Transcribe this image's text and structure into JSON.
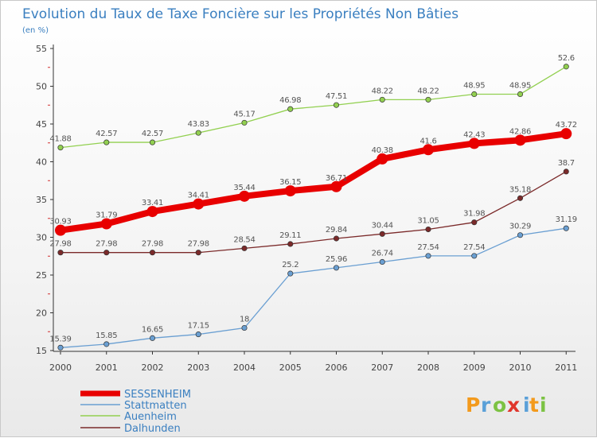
{
  "chart_data": {
    "type": "line",
    "title": "Evolution du Taux de Taxe Foncière sur les Propriétés Non Bâties",
    "unit_label": "(en %)",
    "xlabel": "",
    "ylabel": "",
    "ylim": [
      15,
      55
    ],
    "y_ticks": [
      15,
      20,
      25,
      30,
      35,
      40,
      45,
      50,
      55
    ],
    "categories": [
      "2000",
      "2001",
      "2002",
      "2003",
      "2004",
      "2005",
      "2006",
      "2007",
      "2008",
      "2009",
      "2010",
      "2011"
    ],
    "series": [
      {
        "name": "SESSENHEIM",
        "color": "#e80000",
        "highlight": true,
        "values": [
          30.93,
          31.79,
          33.41,
          34.41,
          35.44,
          36.15,
          36.71,
          40.38,
          41.6,
          42.43,
          42.86,
          43.72
        ],
        "labels": [
          "30.93",
          "31.79",
          "33.41",
          "34.41",
          "35.44",
          "36.15",
          "36.71",
          "40.38",
          "41.6",
          "42.43",
          "42.86",
          "43.72"
        ]
      },
      {
        "name": "Stattmatten",
        "color": "#6a9fd2",
        "highlight": false,
        "values": [
          15.39,
          15.85,
          16.65,
          17.15,
          18,
          25.2,
          25.96,
          26.74,
          27.54,
          27.54,
          30.29,
          31.19
        ],
        "labels": [
          "15.39",
          "15.85",
          "16.65",
          "17.15",
          "18",
          "25.2",
          "25.96",
          "26.74",
          "27.54",
          "27.54",
          "30.29",
          "31.19"
        ]
      },
      {
        "name": "Auenheim",
        "color": "#92d050",
        "highlight": false,
        "values": [
          41.88,
          42.57,
          42.57,
          43.83,
          45.17,
          46.98,
          47.51,
          48.22,
          48.22,
          48.95,
          48.95,
          52.6
        ],
        "labels": [
          "41.88",
          "42.57",
          "42.57",
          "43.83",
          "45.17",
          "46.98",
          "47.51",
          "48.22",
          "48.22",
          "48.95",
          "48.95",
          "52.6"
        ]
      },
      {
        "name": "Dalhunden",
        "color": "#7b2a2a",
        "highlight": false,
        "values": [
          27.98,
          27.98,
          27.98,
          27.98,
          28.54,
          29.11,
          29.84,
          30.44,
          31.05,
          31.98,
          35.18,
          38.7
        ],
        "labels": [
          "27.98",
          "27.98",
          "27.98",
          "27.98",
          "28.54",
          "29.11",
          "29.84",
          "30.44",
          "31.05",
          "31.98",
          "35.18",
          "38.7"
        ]
      }
    ],
    "legend_placement": "bottom-left",
    "grid": false
  },
  "logo": {
    "letters": [
      "P",
      "r",
      "o",
      "x",
      "i",
      "t",
      "i"
    ],
    "colors": [
      "#f39a1c",
      "#5aa0d8",
      "#7cc243",
      "#e0352b",
      "#5aa0d8",
      "#f39a1c",
      "#7cc243"
    ]
  }
}
